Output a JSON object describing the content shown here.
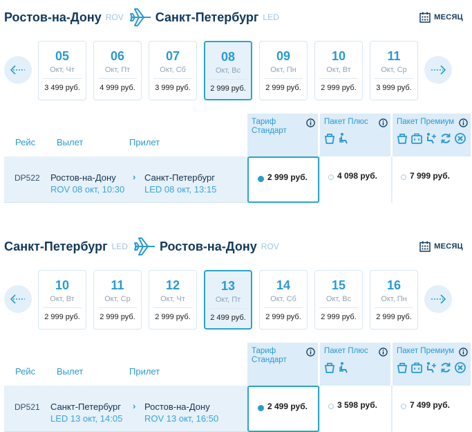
{
  "month_label": "МЕСЯЦ",
  "columns": {
    "flight": "Рейс",
    "departure": "Вылет",
    "arrival": "Прилет"
  },
  "tariffs": {
    "standard": "Тариф Стандарт",
    "plus": "Пакет Плюс",
    "premium": "Пакет Премиум"
  },
  "icons": {
    "plane": "plane-icon",
    "calendar": "calendar-icon",
    "info": "info-icon",
    "baggage": "baggage-icon",
    "seat": "seat-icon",
    "case": "suitcase-icon",
    "seat_plus": "seat-plus-icon",
    "refresh": "exchange-icon",
    "cancel": "cancel-icon",
    "prev": "arrow-left-icon",
    "next": "arrow-right-icon"
  },
  "colors": {
    "accent": "#2a9ad0",
    "dark": "#12395b",
    "highlight": "#e6f1fa",
    "tariff_head": "#dcecf8"
  },
  "outbound": {
    "from_city": "Ростов-на-Дону",
    "from_code": "ROV",
    "to_city": "Санкт-Петербург",
    "to_code": "LED",
    "days": [
      {
        "num": "05",
        "weekday": "Окт, Чт",
        "price": "3 499 руб."
      },
      {
        "num": "06",
        "weekday": "Окт, Пт",
        "price": "4 999 руб."
      },
      {
        "num": "07",
        "weekday": "Окт, Сб",
        "price": "3 999 руб."
      },
      {
        "num": "08",
        "weekday": "Окт, Вс",
        "price": "2 999 руб."
      },
      {
        "num": "09",
        "weekday": "Окт, Пн",
        "price": "2 999 руб."
      },
      {
        "num": "10",
        "weekday": "Окт, Вт",
        "price": "2 999 руб."
      },
      {
        "num": "11",
        "weekday": "Окт, Ср",
        "price": "3 999 руб."
      }
    ],
    "selected_index": 3,
    "flight": {
      "number": "DP522",
      "dep_city": "Ростов-на-Дону",
      "dep_time": "ROV 08 окт, 10:30",
      "arr_city": "Санкт-Петербург",
      "arr_time": "LED 08 окт, 13:15",
      "fare_standard": "2 999 руб.",
      "fare_plus": "4 098 руб.",
      "fare_premium": "7 999 руб."
    }
  },
  "return": {
    "from_city": "Санкт-Петербург",
    "from_code": "LED",
    "to_city": "Ростов-на-Дону",
    "to_code": "ROV",
    "days": [
      {
        "num": "10",
        "weekday": "Окт, Вт",
        "price": "2 999 руб."
      },
      {
        "num": "11",
        "weekday": "Окт, Ср",
        "price": "2 999 руб."
      },
      {
        "num": "12",
        "weekday": "Окт, Чт",
        "price": "2 999 руб."
      },
      {
        "num": "13",
        "weekday": "Окт, Пт",
        "price": "2 499 руб."
      },
      {
        "num": "14",
        "weekday": "Окт, Сб",
        "price": "2 999 руб."
      },
      {
        "num": "15",
        "weekday": "Окт, Вс",
        "price": "2 999 руб."
      },
      {
        "num": "16",
        "weekday": "Окт, Пн",
        "price": "2 999 руб."
      }
    ],
    "selected_index": 3,
    "flight": {
      "number": "DP521",
      "dep_city": "Санкт-Петербург",
      "dep_time": "LED 13 окт, 14:05",
      "arr_city": "Ростов-на-Дону",
      "arr_time": "ROV 13 окт, 16:50",
      "fare_standard": "2 499 руб.",
      "fare_plus": "3 598 руб.",
      "fare_premium": "7 499 руб."
    }
  }
}
